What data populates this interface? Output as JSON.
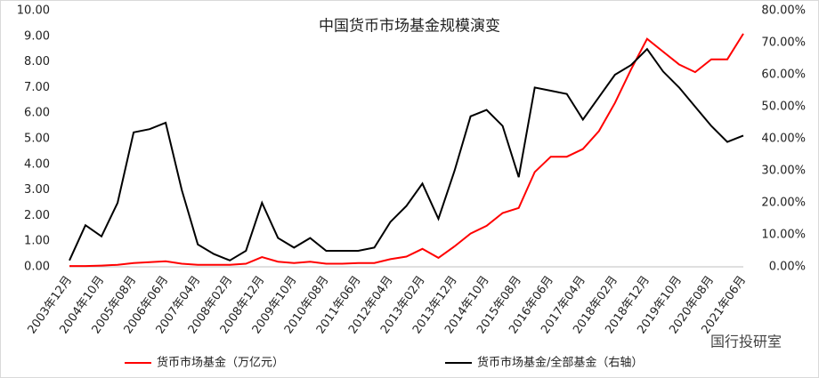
{
  "chart_data": {
    "type": "line",
    "title": "中国货币市场基金规模演变",
    "categories": [
      "2003年12月",
      null,
      "2004年10月",
      null,
      "2005年08月",
      null,
      "2006年06月",
      null,
      "2007年04月",
      null,
      "2008年02月",
      null,
      "2008年12月",
      null,
      "2009年10月",
      null,
      "2010年08月",
      null,
      "2011年06月",
      null,
      "2012年04月",
      null,
      "2013年02月",
      null,
      "2013年12月",
      null,
      "2014年10月",
      null,
      "2015年08月",
      null,
      "2016年06月",
      null,
      "2017年04月",
      null,
      "2018年02月",
      null,
      "2018年12月",
      null,
      "2019年10月",
      null,
      "2020年08月",
      null,
      "2021年06月"
    ],
    "series": [
      {
        "name": "货币市场基金（万亿元）",
        "color": "#ff0000",
        "values": [
          0.03,
          0.03,
          0.05,
          0.08,
          0.15,
          0.18,
          0.22,
          0.12,
          0.08,
          0.08,
          0.08,
          0.12,
          0.38,
          0.2,
          0.15,
          0.2,
          0.12,
          0.12,
          0.15,
          0.15,
          0.3,
          0.4,
          0.7,
          0.35,
          0.8,
          1.3,
          1.6,
          2.1,
          2.3,
          3.7,
          4.3,
          4.3,
          4.6,
          5.3,
          6.4,
          7.7,
          8.9,
          8.4,
          7.9,
          7.6,
          8.1,
          8.1,
          9.1
        ]
      },
      {
        "name": "货币市场基金/全部基金（右轴）",
        "color": "#000000",
        "axis": "y2",
        "values": [
          2,
          13,
          9.5,
          20,
          42,
          43,
          45,
          24,
          7,
          4,
          2,
          5,
          20,
          9,
          6,
          9,
          5,
          5,
          5,
          6,
          14,
          19,
          26,
          15,
          30,
          47,
          49,
          44,
          28,
          56,
          55,
          54,
          46,
          53,
          60,
          63,
          68,
          61,
          56,
          50,
          44,
          39,
          41
        ]
      }
    ],
    "ylim": [
      0,
      10
    ],
    "yticks": [
      {
        "value": 0,
        "label": "0.00"
      },
      {
        "value": 1,
        "label": "1.00"
      },
      {
        "value": 2,
        "label": "2.00"
      },
      {
        "value": 3,
        "label": "3.00"
      },
      {
        "value": 4,
        "label": "4.00"
      },
      {
        "value": 5,
        "label": "5.00"
      },
      {
        "value": 6,
        "label": "6.00"
      },
      {
        "value": 7,
        "label": "7.00"
      },
      {
        "value": 8,
        "label": "8.00"
      },
      {
        "value": 9,
        "label": "9.00"
      },
      {
        "value": 10,
        "label": "10.00"
      }
    ],
    "y2lim": [
      0,
      80
    ],
    "y2ticks": [
      {
        "value": 0,
        "label": "0.00%"
      },
      {
        "value": 10,
        "label": "10.00%"
      },
      {
        "value": 20,
        "label": "20.00%"
      },
      {
        "value": 30,
        "label": "30.00%"
      },
      {
        "value": 40,
        "label": "40.00%"
      },
      {
        "value": 50,
        "label": "50.00%"
      },
      {
        "value": 60,
        "label": "60.00%"
      },
      {
        "value": 70,
        "label": "70.00%"
      },
      {
        "value": 80,
        "label": "80.00%"
      }
    ],
    "watermark": "国行投研室"
  }
}
